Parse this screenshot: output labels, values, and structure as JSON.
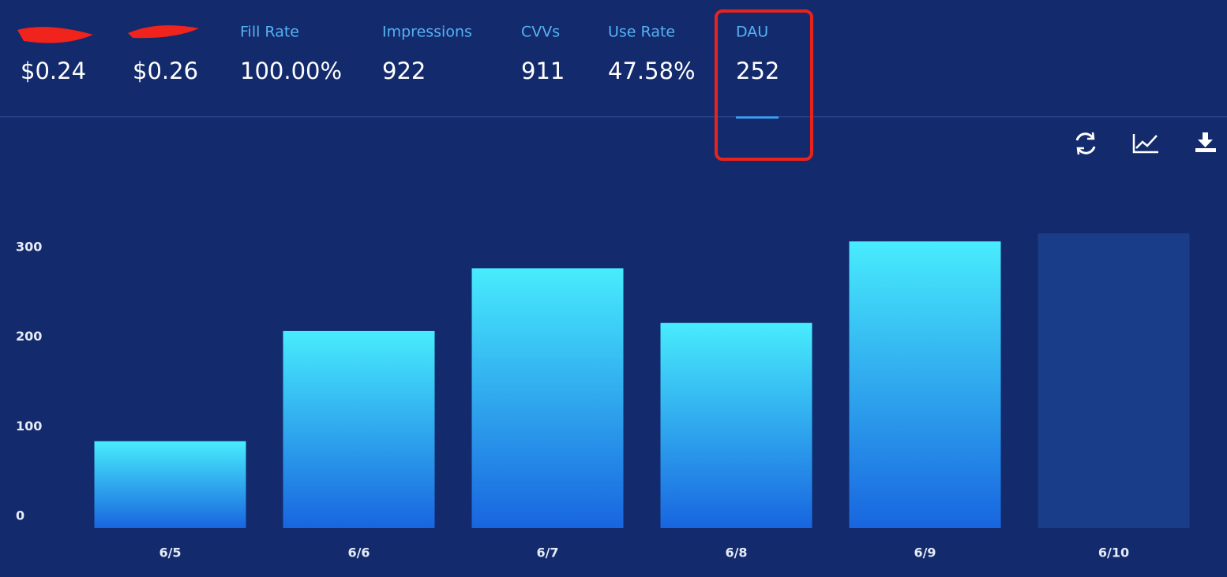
{
  "stats": [
    {
      "value": "$0.24"
    },
    {
      "value": "$0.26"
    },
    {
      "label": "Fill Rate",
      "value": "100.00%"
    },
    {
      "label": "Impressions",
      "value": "922"
    },
    {
      "label": "CVVs",
      "value": "911"
    },
    {
      "label": "Use Rate",
      "value": "47.58%"
    },
    {
      "label": "DAU",
      "value": "252"
    }
  ],
  "chart_data": {
    "type": "bar",
    "categories": [
      "6/5",
      "6/6",
      "6/7",
      "6/8",
      "6/9",
      "6/10"
    ],
    "values": [
      97,
      220,
      290,
      229,
      320,
      329
    ],
    "ylim": [
      0,
      300
    ],
    "yticks": [
      0,
      100,
      200,
      300
    ],
    "grid": false
  }
}
